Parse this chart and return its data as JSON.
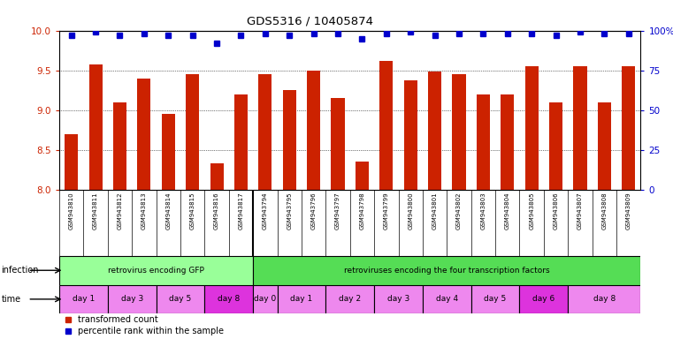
{
  "title": "GDS5316 / 10405874",
  "samples": [
    "GSM943810",
    "GSM943811",
    "GSM943812",
    "GSM943813",
    "GSM943814",
    "GSM943815",
    "GSM943816",
    "GSM943817",
    "GSM943794",
    "GSM943795",
    "GSM943796",
    "GSM943797",
    "GSM943798",
    "GSM943799",
    "GSM943800",
    "GSM943801",
    "GSM943802",
    "GSM943803",
    "GSM943804",
    "GSM943805",
    "GSM943806",
    "GSM943807",
    "GSM943808",
    "GSM943809"
  ],
  "bar_values": [
    8.7,
    9.57,
    9.1,
    9.4,
    8.95,
    9.45,
    8.33,
    9.2,
    9.45,
    9.25,
    9.5,
    9.15,
    8.35,
    9.62,
    9.38,
    9.48,
    9.45,
    9.2,
    9.2,
    9.55,
    9.1,
    9.55,
    9.1,
    9.55
  ],
  "dot_values": [
    97,
    99,
    97,
    98,
    97,
    97,
    92,
    97,
    98,
    97,
    98,
    98,
    95,
    98,
    99,
    97,
    98,
    98,
    98,
    98,
    97,
    99,
    98,
    98
  ],
  "ylim_left": [
    8.0,
    10.0
  ],
  "ylim_right": [
    0,
    100
  ],
  "yticks_left": [
    8.0,
    8.5,
    9.0,
    9.5,
    10.0
  ],
  "yticks_right": [
    0,
    25,
    50,
    75,
    100
  ],
  "bar_color": "#cc2200",
  "dot_color": "#0000cc",
  "bg_color": "#ffffff",
  "infection_groups": [
    {
      "label": "retrovirus encoding GFP",
      "start": 0,
      "end": 8,
      "color": "#99ff99"
    },
    {
      "label": "retroviruses encoding the four transcription factors",
      "start": 8,
      "end": 24,
      "color": "#55dd55"
    }
  ],
  "time_groups": [
    {
      "label": "day 1",
      "start": 0,
      "end": 2,
      "color": "#ee88ee"
    },
    {
      "label": "day 3",
      "start": 2,
      "end": 4,
      "color": "#ee88ee"
    },
    {
      "label": "day 5",
      "start": 4,
      "end": 6,
      "color": "#ee88ee"
    },
    {
      "label": "day 8",
      "start": 6,
      "end": 8,
      "color": "#dd33dd"
    },
    {
      "label": "day 0",
      "start": 8,
      "end": 9,
      "color": "#ee88ee"
    },
    {
      "label": "day 1",
      "start": 9,
      "end": 11,
      "color": "#ee88ee"
    },
    {
      "label": "day 2",
      "start": 11,
      "end": 13,
      "color": "#ee88ee"
    },
    {
      "label": "day 3",
      "start": 13,
      "end": 15,
      "color": "#ee88ee"
    },
    {
      "label": "day 4",
      "start": 15,
      "end": 17,
      "color": "#ee88ee"
    },
    {
      "label": "day 5",
      "start": 17,
      "end": 19,
      "color": "#ee88ee"
    },
    {
      "label": "day 6",
      "start": 19,
      "end": 21,
      "color": "#dd33dd"
    },
    {
      "label": "day 8",
      "start": 21,
      "end": 24,
      "color": "#ee88ee"
    }
  ]
}
